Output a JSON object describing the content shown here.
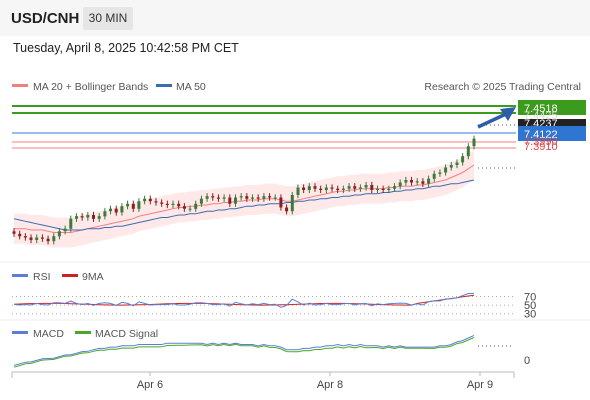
{
  "header": {
    "symbol": "USD/CNH",
    "timeframe": "30 MIN",
    "datetime": "Tuesday, April 8, 2025 10:42:58 PM CET"
  },
  "legend": {
    "ma20": "MA 20 + Bollinger Bands",
    "ma50": "MA 50",
    "credit": "Research © 2025 Trading Central",
    "rsi": "RSI",
    "rsi_ma": "9MA",
    "macd": "MACD",
    "macd_signal": "MACD Signal"
  },
  "colors": {
    "ma20": "#f08080",
    "ma50": "#3a6bb5",
    "bollinger_fill": "#fde0e0",
    "target": "#3c9a1c",
    "pivot": "#3a7bd5",
    "support": "#f08080",
    "last": "#222222",
    "rsi": "#5b7fd6",
    "rsi_ma": "#cc2222",
    "macd": "#5b7fd6",
    "macd_signal": "#4aa82a"
  },
  "price_labels": [
    {
      "name": "target-level",
      "value": "7.4518",
      "style": "green"
    },
    {
      "name": "resistance-level",
      "value": "7.4425",
      "style": "faint"
    },
    {
      "name": "last-price",
      "value": "7.4237",
      "style": "dark"
    },
    {
      "name": "pivot-level",
      "value": "7.4122",
      "style": "blue"
    },
    {
      "name": "support-1-level",
      "value": "7.3990",
      "style": "red"
    },
    {
      "name": "support-2-level",
      "value": "7.3910",
      "style": "red"
    }
  ],
  "rsi_levels": [
    "70",
    "50",
    "30"
  ],
  "macd_levels": [
    "0"
  ],
  "x_ticks": [
    "Apr 6",
    "Apr 8",
    "Apr 9"
  ],
  "chart_data": {
    "type": "line",
    "title": "USD/CNH",
    "main_series": {
      "close": [
        7.348,
        7.346,
        7.345,
        7.343,
        7.345,
        7.344,
        7.342,
        7.346,
        7.35,
        7.352,
        7.36,
        7.362,
        7.361,
        7.363,
        7.36,
        7.362,
        7.366,
        7.368,
        7.365,
        7.37,
        7.372,
        7.368,
        7.374,
        7.376,
        7.374,
        7.373,
        7.372,
        7.371,
        7.372,
        7.37,
        7.368,
        7.368,
        7.372,
        7.376,
        7.378,
        7.377,
        7.376,
        7.377,
        7.372,
        7.377,
        7.378,
        7.376,
        7.377,
        7.376,
        7.378,
        7.377,
        7.377,
        7.369,
        7.366,
        7.379,
        7.385,
        7.383,
        7.386,
        7.384,
        7.383,
        7.385,
        7.384,
        7.383,
        7.384,
        7.386,
        7.384,
        7.385,
        7.387,
        7.383,
        7.384,
        7.383,
        7.384,
        7.386,
        7.389,
        7.391,
        7.389,
        7.39,
        7.388,
        7.392,
        7.396,
        7.397,
        7.401,
        7.403,
        7.405,
        7.41,
        7.418,
        7.424
      ],
      "ma20": [
        7.352,
        7.352,
        7.352,
        7.351,
        7.351,
        7.351,
        7.35,
        7.349,
        7.349,
        7.349,
        7.349,
        7.35,
        7.351,
        7.352,
        7.353,
        7.354,
        7.355,
        7.356,
        7.357,
        7.358,
        7.359,
        7.36,
        7.362,
        7.363,
        7.364,
        7.365,
        7.366,
        7.367,
        7.368,
        7.369,
        7.369,
        7.37,
        7.37,
        7.371,
        7.371,
        7.372,
        7.372,
        7.373,
        7.373,
        7.374,
        7.374,
        7.375,
        7.375,
        7.375,
        7.376,
        7.376,
        7.376,
        7.375,
        7.374,
        7.374,
        7.375,
        7.376,
        7.377,
        7.378,
        7.379,
        7.38,
        7.381,
        7.382,
        7.382,
        7.383,
        7.383,
        7.384,
        7.384,
        7.384,
        7.384,
        7.384,
        7.385,
        7.385,
        7.386,
        7.386,
        7.386,
        7.387,
        7.387,
        7.388,
        7.389,
        7.39,
        7.391,
        7.393,
        7.395,
        7.397,
        7.4,
        7.403
      ],
      "ma50": [
        7.36,
        7.359,
        7.358,
        7.357,
        7.356,
        7.355,
        7.354,
        7.353,
        7.352,
        7.351,
        7.351,
        7.351,
        7.351,
        7.352,
        7.352,
        7.352,
        7.353,
        7.353,
        7.354,
        7.354,
        7.355,
        7.356,
        7.357,
        7.358,
        7.359,
        7.36,
        7.361,
        7.361,
        7.362,
        7.363,
        7.363,
        7.364,
        7.364,
        7.365,
        7.366,
        7.366,
        7.367,
        7.367,
        7.368,
        7.368,
        7.369,
        7.37,
        7.37,
        7.371,
        7.371,
        7.372,
        7.372,
        7.372,
        7.373,
        7.373,
        7.374,
        7.374,
        7.375,
        7.375,
        7.376,
        7.376,
        7.377,
        7.377,
        7.378,
        7.378,
        7.379,
        7.379,
        7.38,
        7.38,
        7.38,
        7.381,
        7.381,
        7.382,
        7.382,
        7.383,
        7.383,
        7.384,
        7.384,
        7.385,
        7.386,
        7.386,
        7.387,
        7.388,
        7.388,
        7.389,
        7.39,
        7.391
      ]
    },
    "levels": {
      "target": 7.4518,
      "resistance": 7.4425,
      "last": 7.4237,
      "pivot": 7.4122,
      "support1": 7.399,
      "support2": 7.391
    },
    "forecast_arrow": {
      "from": 7.4237,
      "to": 7.4518
    },
    "y_range": [
      7.335,
      7.455
    ],
    "rsi": {
      "levels": [
        70,
        50,
        30
      ],
      "range": [
        20,
        85
      ],
      "last": 74
    },
    "macd": {
      "zero": 0
    },
    "x_labels": [
      "Apr 6",
      "Apr 8",
      "Apr 9"
    ]
  }
}
